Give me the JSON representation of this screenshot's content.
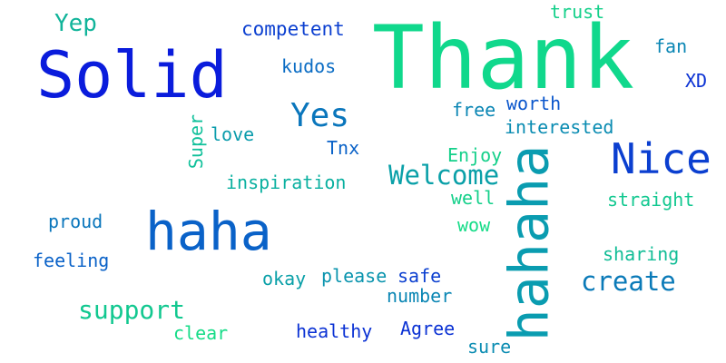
{
  "colors": {
    "blue": "#0a1cdc",
    "royal": "#0b3fd0",
    "mid_blue": "#0a62c8",
    "teal_blue": "#0a7ab8",
    "teal": "#0aa0a8",
    "green_teal": "#11bd96",
    "green": "#12d88a"
  },
  "words": [
    {
      "text": "Thank"
    },
    {
      "text": "Solid"
    },
    {
      "text": "hahaha"
    },
    {
      "text": "haha"
    },
    {
      "text": "Nice"
    },
    {
      "text": "Yes"
    },
    {
      "text": "Welcome"
    },
    {
      "text": "create"
    },
    {
      "text": "support"
    },
    {
      "text": "Yep"
    },
    {
      "text": "competent"
    },
    {
      "text": "kudos"
    },
    {
      "text": "trust"
    },
    {
      "text": "fan"
    },
    {
      "text": "XD"
    },
    {
      "text": "worth"
    },
    {
      "text": "free"
    },
    {
      "text": "interested"
    },
    {
      "text": "love"
    },
    {
      "text": "Super"
    },
    {
      "text": "Tnx"
    },
    {
      "text": "Enjoy"
    },
    {
      "text": "inspiration"
    },
    {
      "text": "well"
    },
    {
      "text": "straight"
    },
    {
      "text": "proud"
    },
    {
      "text": "wow"
    },
    {
      "text": "sharing"
    },
    {
      "text": "feeling"
    },
    {
      "text": "okay"
    },
    {
      "text": "please"
    },
    {
      "text": "safe"
    },
    {
      "text": "number"
    },
    {
      "text": "clear"
    },
    {
      "text": "healthy"
    },
    {
      "text": "Agree"
    },
    {
      "text": "sure"
    }
  ]
}
